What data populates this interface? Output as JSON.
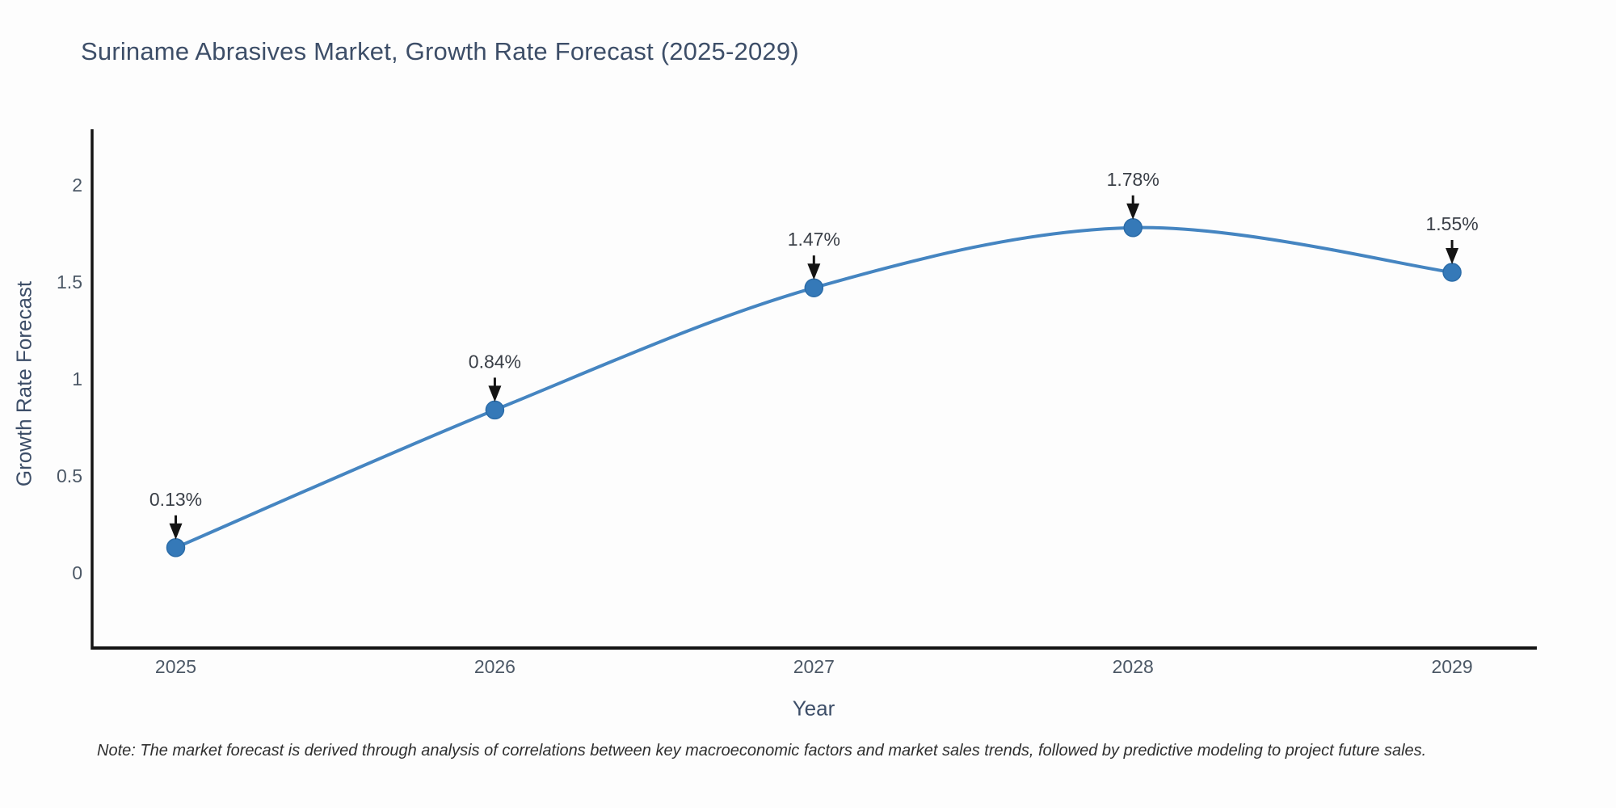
{
  "title": "Suriname Abrasives Market, Growth Rate Forecast (2025-2029)",
  "note": "Note: The market forecast is derived through analysis of correlations between key macroeconomic factors and market sales trends, followed by predictive modeling to project future sales.",
  "colors": {
    "background": "#fdfdfd",
    "line": "#4585c1",
    "marker_fill": "#3579b8",
    "marker_edge": "#2b6ca8",
    "axis_line": "#141414",
    "title_text": "#3d4e68",
    "tick_text": "#4c5866",
    "annotation_text": "#3a3f47",
    "arrow": "#141414",
    "note_text": "#2f2f2f"
  },
  "chart_data": {
    "type": "line",
    "line_shape": "spline",
    "title": "Suriname Abrasives Market, Growth Rate Forecast (2025-2029)",
    "xlabel": "Year",
    "ylabel": "Growth Rate Forecast",
    "categories": [
      "2025",
      "2026",
      "2027",
      "2028",
      "2029"
    ],
    "values": [
      0.13,
      0.84,
      1.47,
      1.78,
      1.55
    ],
    "point_labels": [
      "0.13%",
      "0.84%",
      "1.47%",
      "1.78%",
      "1.55%"
    ],
    "ytick_values": [
      0,
      0.5,
      1,
      1.5,
      2
    ],
    "ytick_labels": [
      "0",
      "0.5",
      "1",
      "1.5",
      "2"
    ],
    "ylim": [
      -0.39,
      2.29
    ],
    "grid": false,
    "legend": null,
    "marker": "circle",
    "annotations": "arrow-down-to-point"
  }
}
